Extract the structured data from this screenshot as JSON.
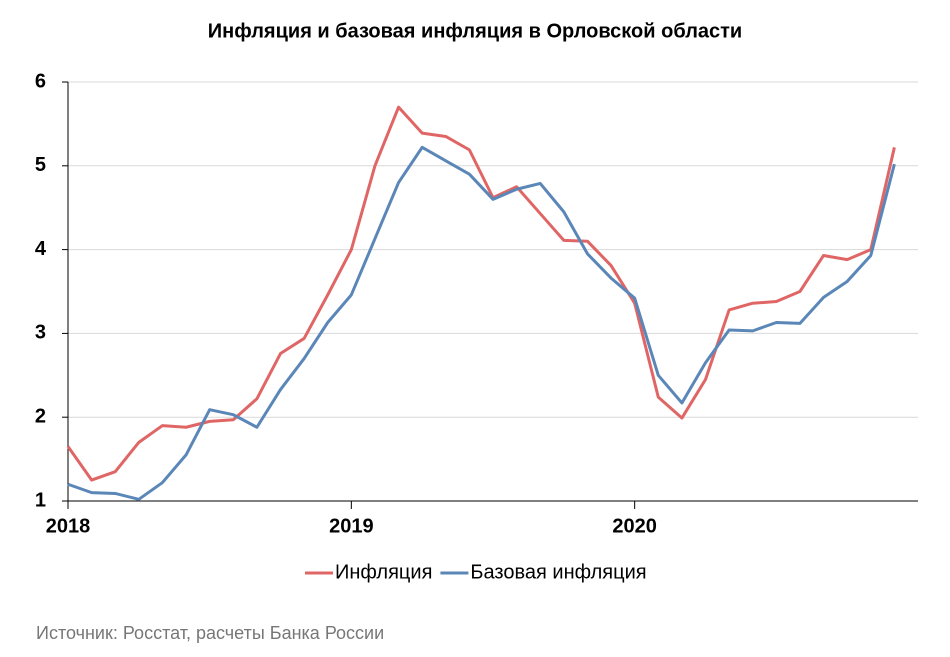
{
  "chart_data": {
    "type": "line",
    "title": "Инфляция и базовая инфляция в Орловской области",
    "categories": [
      "2018",
      null,
      null,
      null,
      null,
      null,
      null,
      null,
      null,
      null,
      null,
      null,
      "2019",
      null,
      null,
      null,
      null,
      null,
      null,
      null,
      null,
      null,
      null,
      null,
      "2020",
      null,
      null,
      null,
      null,
      null,
      null,
      null,
      null,
      null,
      null,
      null
    ],
    "series": [
      {
        "name": "Инфляция",
        "color": "#e06666",
        "values": [
          1.65,
          1.25,
          1.35,
          1.7,
          1.9,
          1.88,
          1.95,
          1.97,
          2.22,
          2.76,
          2.94,
          3.46,
          4.0,
          5.0,
          5.7,
          5.39,
          5.35,
          5.19,
          4.62,
          4.75,
          4.43,
          4.11,
          4.1,
          3.81,
          3.36,
          2.24,
          1.99,
          2.45,
          3.28,
          3.36,
          3.38,
          3.5,
          3.93,
          3.88,
          4.0,
          5.22
        ]
      },
      {
        "name": "Базовая инфляция",
        "color": "#5b87b8",
        "values": [
          1.2,
          1.1,
          1.09,
          1.02,
          1.22,
          1.55,
          2.09,
          2.03,
          1.88,
          2.33,
          2.7,
          3.13,
          3.46,
          4.13,
          4.8,
          5.22,
          5.06,
          4.9,
          4.6,
          4.72,
          4.79,
          4.45,
          3.95,
          3.66,
          3.42,
          2.5,
          2.17,
          2.65,
          3.04,
          3.03,
          3.13,
          3.12,
          3.43,
          3.62,
          3.93,
          5.02
        ]
      }
    ],
    "ylim": [
      1,
      6
    ],
    "yticks": [
      1,
      2,
      3,
      4,
      5,
      6
    ],
    "grid": true,
    "legend": "bottom",
    "source": "Источник: Росстат, расчеты Банка России"
  }
}
